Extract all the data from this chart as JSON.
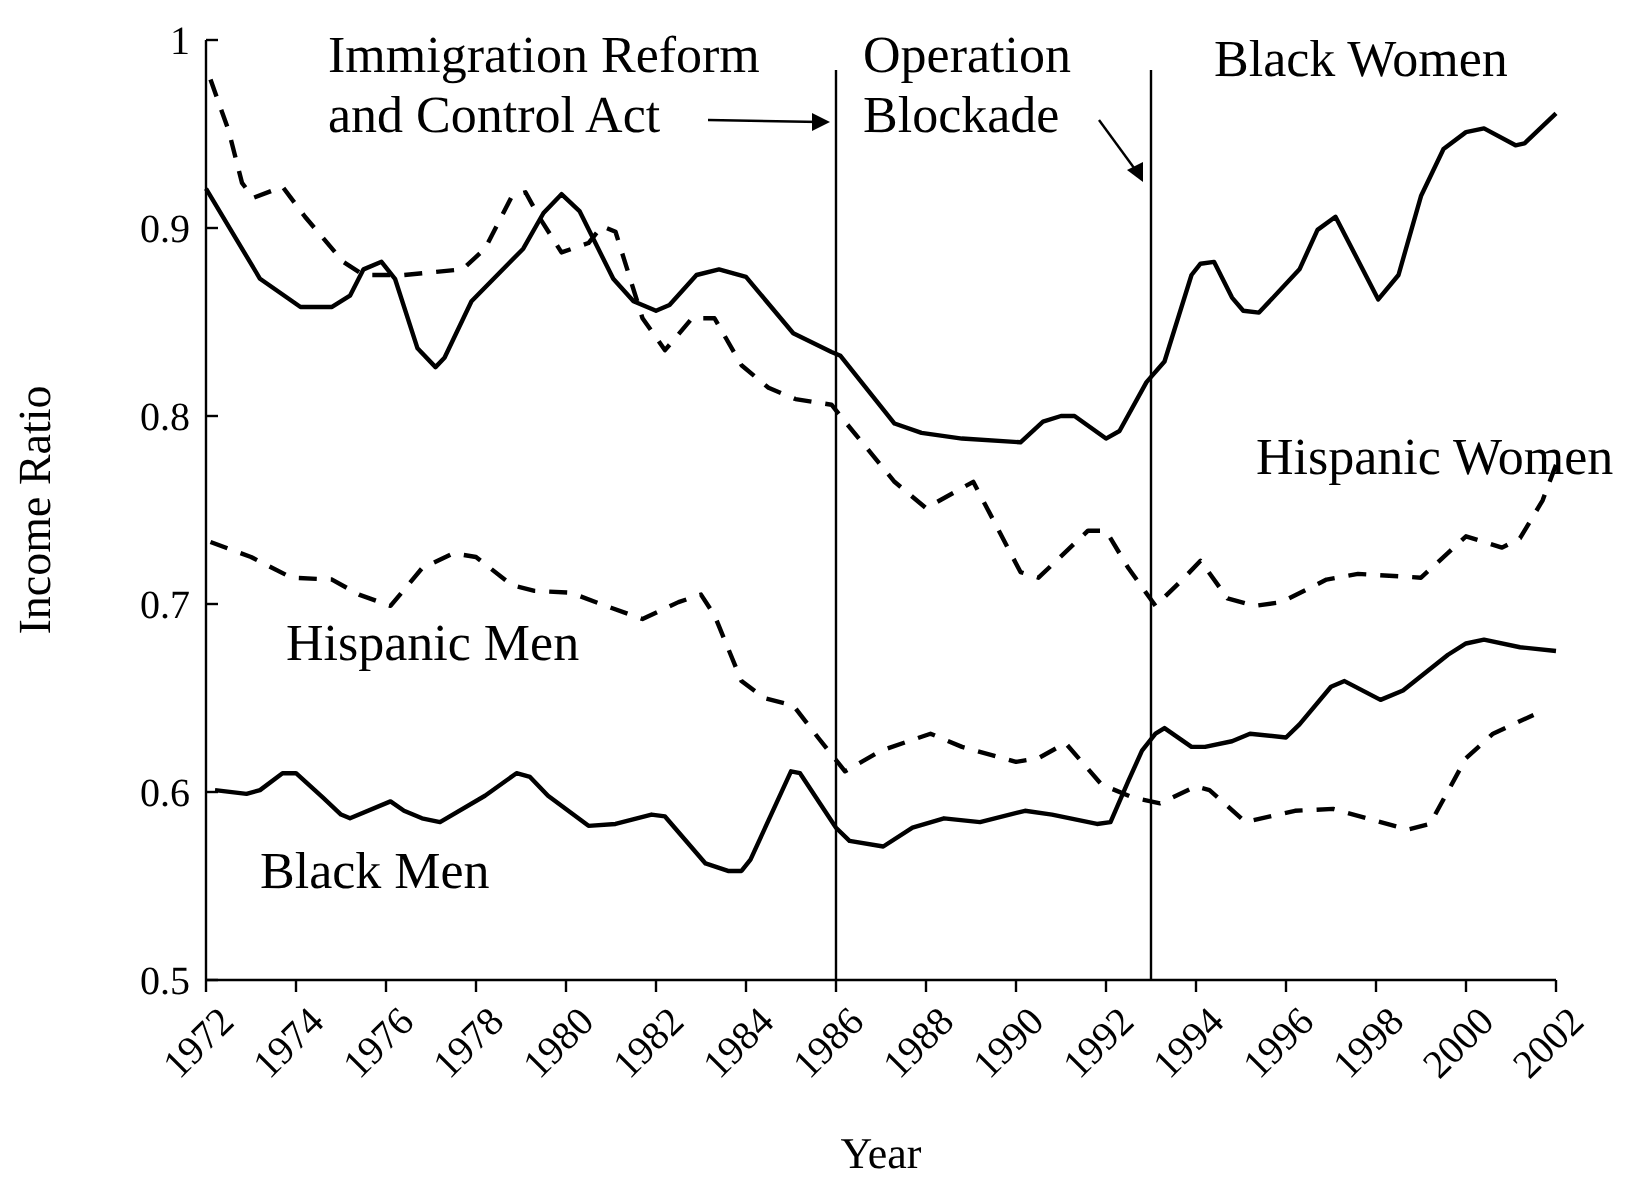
{
  "chart_data": {
    "type": "line",
    "xlabel": "Year",
    "ylabel": "Income Ratio",
    "xlim": [
      1972,
      2002
    ],
    "xticks": [
      1972,
      1974,
      1976,
      1978,
      1980,
      1982,
      1984,
      1986,
      1988,
      1990,
      1992,
      1994,
      1996,
      1998,
      2000,
      2002
    ],
    "ylim": [
      0.5,
      1
    ],
    "yticks": [
      0.5,
      0.6,
      0.7,
      0.8,
      0.9,
      1
    ],
    "marker": "none",
    "ref_lines": [
      {
        "axis": "x",
        "value": 1986,
        "label": "Immigration Reform\nand Control Act",
        "color": "#000000"
      },
      {
        "axis": "x",
        "value": 1993,
        "label": "Operation\nBlockade",
        "color": "#000000"
      }
    ],
    "series": [
      {
        "name": "Black Women",
        "color": "#000000",
        "line_style": "solid",
        "x": [
          1972,
          1973.2,
          1974.1,
          1974.8,
          1975.2,
          1975.5,
          1975.9,
          1976.2,
          1976.7,
          1977.1,
          1977.3,
          1977.9,
          1979.05,
          1979.5,
          1979.9,
          1980.3,
          1981.05,
          1981.5,
          1982,
          1982.3,
          1982.9,
          1983.4,
          1984,
          1985.05,
          1985.9,
          1986.1,
          1987.3,
          1987.9,
          1988.8,
          1990.1,
          1990.6,
          1991,
          1991.3,
          1992,
          1992.3,
          1992.9,
          1993.3,
          1993.9,
          1994.1,
          1994.4,
          1994.8,
          1995.05,
          1995.4,
          1996.3,
          1996.7,
          1997.1,
          1998.05,
          1998.5,
          1999,
          1999.5,
          2000,
          2000.4,
          2001.1,
          2001.3,
          2002
        ],
        "values": [
          0.921,
          0.873,
          0.858,
          0.858,
          0.864,
          0.878,
          0.882,
          0.873,
          0.836,
          0.826,
          0.831,
          0.861,
          0.889,
          0.908,
          0.918,
          0.909,
          0.873,
          0.861,
          0.856,
          0.859,
          0.875,
          0.878,
          0.874,
          0.844,
          0.834,
          0.832,
          0.796,
          0.791,
          0.788,
          0.786,
          0.797,
          0.8,
          0.8,
          0.788,
          0.792,
          0.818,
          0.829,
          0.875,
          0.881,
          0.882,
          0.863,
          0.856,
          0.855,
          0.878,
          0.899,
          0.906,
          0.862,
          0.875,
          0.917,
          0.942,
          0.951,
          0.953,
          0.944,
          0.945,
          0.961
        ]
      },
      {
        "name": "Hispanic Women",
        "color": "#000000",
        "line_style": "dashed",
        "x": [
          1972.1,
          1972.5,
          1972.8,
          1973.05,
          1973.7,
          1974.2,
          1975.05,
          1975.5,
          1976.4,
          1977.7,
          1978.2,
          1978.8,
          1979.1,
          1979.4,
          1979.9,
          1980.5,
          1980.8,
          1981.1,
          1981.7,
          1982.2,
          1982.8,
          1983.3,
          1983.9,
          1984.5,
          1985.1,
          1985.9,
          1986.2,
          1987.3,
          1988,
          1989.05,
          1989.4,
          1990.1,
          1990.5,
          1991.6,
          1992,
          1992.5,
          1993.1,
          1993.7,
          1994.1,
          1994.7,
          1995.3,
          1995.9,
          1996.9,
          1997.6,
          1999,
          2000,
          2000.8,
          2001.2,
          2001.7,
          2002
        ],
        "values": [
          0.979,
          0.952,
          0.924,
          0.916,
          0.922,
          0.906,
          0.882,
          0.875,
          0.875,
          0.878,
          0.889,
          0.917,
          0.919,
          0.906,
          0.887,
          0.892,
          0.901,
          0.898,
          0.852,
          0.835,
          0.852,
          0.852,
          0.827,
          0.815,
          0.809,
          0.806,
          0.797,
          0.765,
          0.751,
          0.765,
          0.749,
          0.717,
          0.714,
          0.739,
          0.739,
          0.719,
          0.699,
          0.713,
          0.723,
          0.703,
          0.699,
          0.701,
          0.713,
          0.716,
          0.714,
          0.736,
          0.73,
          0.735,
          0.755,
          0.774
        ]
      },
      {
        "name": "Hispanic Men",
        "color": "#000000",
        "line_style": "dashed",
        "x": [
          1972.1,
          1973,
          1973.9,
          1974.8,
          1975.4,
          1976.1,
          1976.8,
          1977.5,
          1978,
          1978.8,
          1979.3,
          1980.1,
          1981,
          1981.7,
          1982.5,
          1983,
          1983.3,
          1983.9,
          1984.4,
          1985.05,
          1985.6,
          1986.2,
          1987,
          1988.1,
          1988.8,
          1990,
          1990.5,
          1991.1,
          1991.9,
          1992.6,
          1993.2,
          1994,
          1994.3,
          1995.1,
          1996.2,
          1997.05,
          1998.7,
          1999.2,
          2000,
          2000.6,
          2001.5
        ],
        "values": [
          0.733,
          0.725,
          0.714,
          0.713,
          0.705,
          0.699,
          0.719,
          0.727,
          0.725,
          0.71,
          0.707,
          0.706,
          0.698,
          0.692,
          0.701,
          0.705,
          0.694,
          0.659,
          0.65,
          0.646,
          0.629,
          0.611,
          0.622,
          0.631,
          0.624,
          0.616,
          0.618,
          0.626,
          0.604,
          0.597,
          0.594,
          0.603,
          0.601,
          0.584,
          0.59,
          0.591,
          0.58,
          0.583,
          0.618,
          0.631,
          0.641
        ]
      },
      {
        "name": "Black Men",
        "color": "#000000",
        "line_style": "solid",
        "x": [
          1972.2,
          1972.9,
          1973.2,
          1973.7,
          1974,
          1974.6,
          1975,
          1975.2,
          1976.1,
          1976.4,
          1976.8,
          1977.2,
          1978.2,
          1978.9,
          1979.2,
          1979.6,
          1980.5,
          1981.1,
          1981.9,
          1982.2,
          1983.1,
          1983.6,
          1983.9,
          1984.1,
          1985,
          1985.2,
          1986,
          1986.3,
          1987.05,
          1987.7,
          1988.4,
          1989.2,
          1990.2,
          1990.8,
          1991.8,
          1992.1,
          1992.5,
          1992.8,
          1993.1,
          1993.3,
          1993.9,
          1994.2,
          1994.8,
          1995.2,
          1996,
          1996.3,
          1997,
          1997.3,
          1998.1,
          1998.6,
          1999.6,
          2000,
          2000.4,
          2001.2,
          2002
        ],
        "values": [
          0.601,
          0.599,
          0.601,
          0.61,
          0.61,
          0.597,
          0.588,
          0.586,
          0.595,
          0.59,
          0.586,
          0.584,
          0.598,
          0.61,
          0.608,
          0.598,
          0.582,
          0.583,
          0.588,
          0.587,
          0.562,
          0.558,
          0.558,
          0.564,
          0.611,
          0.61,
          0.581,
          0.574,
          0.571,
          0.581,
          0.586,
          0.584,
          0.59,
          0.588,
          0.583,
          0.584,
          0.606,
          0.622,
          0.631,
          0.634,
          0.624,
          0.624,
          0.627,
          0.631,
          0.629,
          0.636,
          0.656,
          0.659,
          0.649,
          0.654,
          0.673,
          0.679,
          0.681,
          0.677,
          0.675
        ]
      }
    ]
  }
}
